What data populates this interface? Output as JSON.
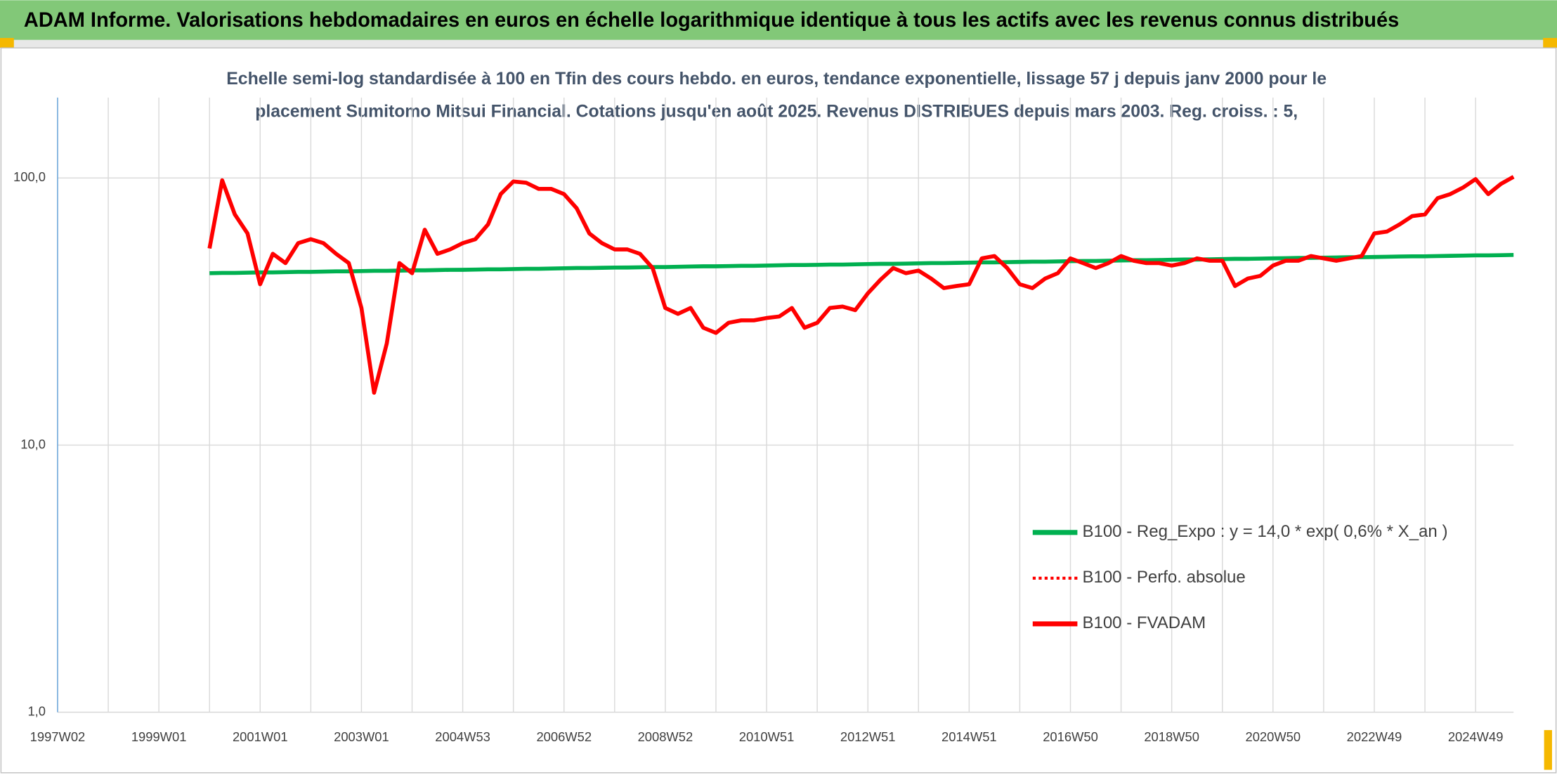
{
  "header": {
    "title": "ADAM Informe. Valorisations hebdomadaires en euros en échelle logarithmique identique à tous les actifs avec les revenus connus distribués"
  },
  "chart_data": {
    "type": "line",
    "subtitle": [
      "Echelle semi-log standardisée à 100 en Tfin des cours hebdo. en euros, tendance exponentielle, lissage 57 j depuis janv 2000 pour le",
      "placement Sumitomo Mitsui Financial. Cotations jusqu'en août 2025. Revenus DISTRIBUES depuis mars 2003. Reg. croiss. : 5,"
    ],
    "categories": [
      "1997W02",
      null,
      null,
      null,
      null,
      null,
      null,
      null,
      "1999W01",
      null,
      null,
      null,
      null,
      null,
      null,
      null,
      "2001W01",
      null,
      null,
      null,
      null,
      null,
      null,
      null,
      "2003W01",
      null,
      null,
      null,
      null,
      null,
      null,
      null,
      "2004W53",
      null,
      null,
      null,
      null,
      null,
      null,
      null,
      "2006W52",
      null,
      null,
      null,
      null,
      null,
      null,
      null,
      "2008W52",
      null,
      null,
      null,
      null,
      null,
      null,
      null,
      "2010W51",
      null,
      null,
      null,
      null,
      null,
      null,
      null,
      "2012W51",
      null,
      null,
      null,
      null,
      null,
      null,
      null,
      "2014W51",
      null,
      null,
      null,
      null,
      null,
      null,
      null,
      "2016W50",
      null,
      null,
      null,
      null,
      null,
      null,
      null,
      "2018W50",
      null,
      null,
      null,
      null,
      null,
      null,
      null,
      "2020W50",
      null,
      null,
      null,
      null,
      null,
      null,
      null,
      "2022W49",
      null,
      null,
      null,
      null,
      null,
      null,
      null,
      "2024W49",
      null,
      null,
      null
    ],
    "log_scale": true,
    "grid": true,
    "legend": "lower right",
    "ylim": [
      1,
      200
    ],
    "yticks": [
      {
        "value": 1,
        "label": "1,0"
      },
      {
        "value": 10,
        "label": "10,0"
      },
      {
        "value": 100,
        "label": "100,0"
      }
    ],
    "series": [
      {
        "name": "B100 - Reg_Expo : y = 14,0 * exp( 0,6% *  X_an )",
        "color": "#00b050",
        "style": "solid",
        "values": [
          null,
          null,
          null,
          null,
          null,
          null,
          null,
          null,
          null,
          null,
          null,
          null,
          44.0,
          44.1,
          44.1,
          44.2,
          44.3,
          44.3,
          44.4,
          44.5,
          44.5,
          44.6,
          44.7,
          44.7,
          44.8,
          44.9,
          44.9,
          45.0,
          45.1,
          45.1,
          45.2,
          45.3,
          45.3,
          45.4,
          45.5,
          45.5,
          45.6,
          45.7,
          45.7,
          45.8,
          45.9,
          46.0,
          46.0,
          46.1,
          46.2,
          46.2,
          46.3,
          46.4,
          46.4,
          46.5,
          46.6,
          46.7,
          46.7,
          46.8,
          46.9,
          46.9,
          47.0,
          47.1,
          47.2,
          47.2,
          47.3,
          47.4,
          47.4,
          47.5,
          47.6,
          47.7,
          47.7,
          47.8,
          47.9,
          48.0,
          48.0,
          48.1,
          48.2,
          48.3,
          48.3,
          48.4,
          48.5,
          48.6,
          48.6,
          48.7,
          48.8,
          48.9,
          48.9,
          49.0,
          49.1,
          49.2,
          49.2,
          49.3,
          49.4,
          49.5,
          49.5,
          49.6,
          49.7,
          49.8,
          49.8,
          49.9,
          50.0,
          50.1,
          50.2,
          50.2,
          50.3,
          50.4,
          50.5,
          50.5,
          50.6,
          50.7,
          50.8,
          50.9,
          50.9,
          51.0,
          51.1,
          51.2,
          51.3,
          51.3,
          51.4,
          51.5
        ]
      },
      {
        "name": "B100 - Perfo. absolue",
        "color": "#ff0000",
        "style": "dotted",
        "values": [
          null,
          null,
          null,
          null,
          null,
          null,
          null,
          null,
          null,
          null,
          null,
          null,
          54.5,
          98,
          73,
          62,
          40,
          52,
          48,
          57,
          59,
          57,
          52,
          48,
          32.6,
          15.7,
          24,
          48,
          44,
          64,
          52,
          54,
          57,
          59,
          67,
          87,
          97,
          96,
          91,
          91,
          87,
          77,
          62,
          57,
          54,
          54,
          52,
          46,
          32.6,
          31,
          32.6,
          27.5,
          26.3,
          28.7,
          29.3,
          29.3,
          29.9,
          30.3,
          32.6,
          27.5,
          28.7,
          32.6,
          33,
          32,
          37,
          41.6,
          46,
          44,
          45,
          42,
          38.7,
          39.4,
          40,
          50,
          51,
          46,
          40,
          38.7,
          42,
          44,
          50,
          48,
          46,
          48,
          51,
          49,
          48,
          48,
          47,
          48,
          50,
          49,
          49,
          39.4,
          42,
          43,
          47,
          49,
          49,
          51,
          50,
          49,
          50,
          51,
          62,
          63,
          67,
          72,
          73,
          84,
          87,
          92,
          99,
          87,
          95,
          101
        ]
      },
      {
        "name": "B100 - FVADAM",
        "color": "#ff0000",
        "style": "solid",
        "values": [
          null,
          null,
          null,
          null,
          null,
          null,
          null,
          null,
          null,
          null,
          null,
          null,
          54.5,
          98,
          73,
          62,
          40,
          52,
          48,
          57,
          59,
          57,
          52,
          48,
          32.6,
          15.7,
          24,
          48,
          44,
          64,
          52,
          54,
          57,
          59,
          67,
          87,
          97,
          96,
          91,
          91,
          87,
          77,
          62,
          57,
          54,
          54,
          52,
          46,
          32.6,
          31,
          32.6,
          27.5,
          26.3,
          28.7,
          29.3,
          29.3,
          29.9,
          30.3,
          32.6,
          27.5,
          28.7,
          32.6,
          33,
          32,
          37,
          41.6,
          46,
          44,
          45,
          42,
          38.7,
          39.4,
          40,
          50,
          51,
          46,
          40,
          38.7,
          42,
          44,
          50,
          48,
          46,
          48,
          51,
          49,
          48,
          48,
          47,
          48,
          50,
          49,
          49,
          39.4,
          42,
          43,
          47,
          49,
          49,
          51,
          50,
          49,
          50,
          51,
          62,
          63,
          67,
          72,
          73,
          84,
          87,
          92,
          99,
          87,
          95,
          101
        ]
      }
    ]
  }
}
